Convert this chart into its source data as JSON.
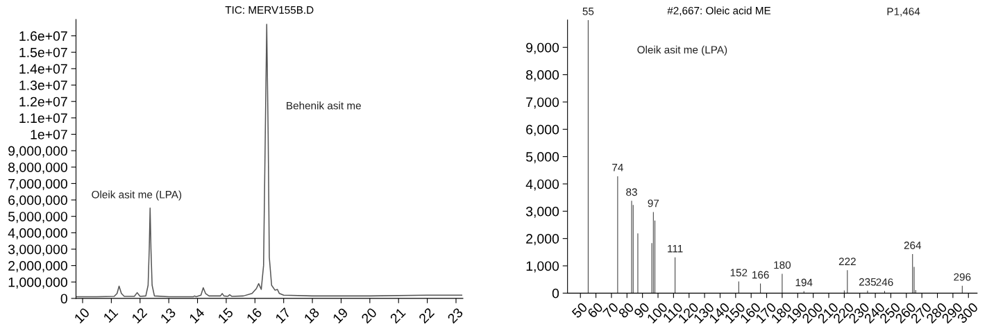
{
  "chart_data": [
    {
      "type": "line",
      "title": "TIC: MERV155B.D",
      "x": [
        9.8,
        10.5,
        11.1,
        11.2,
        11.27,
        11.35,
        11.45,
        11.8,
        11.9,
        12.0,
        12.2,
        12.28,
        12.32,
        12.35,
        12.38,
        12.42,
        12.5,
        13.0,
        13.85,
        13.9,
        13.95,
        14.12,
        14.2,
        14.28,
        14.4,
        14.8,
        14.86,
        14.92,
        15.05,
        15.12,
        15.2,
        15.6,
        15.9,
        16.05,
        16.13,
        16.22,
        16.3,
        16.36,
        16.41,
        16.46,
        16.5,
        16.58,
        16.7,
        16.78,
        16.85,
        17.0,
        18.0,
        20.0,
        22.0,
        23.2
      ],
      "series": [
        {
          "color": "#555555",
          "values": [
            100000,
            100000,
            120000,
            300000,
            750000,
            300000,
            120000,
            120000,
            350000,
            120000,
            150000,
            800000,
            3000000,
            5500000,
            3000000,
            800000,
            150000,
            100000,
            100000,
            150000,
            100000,
            200000,
            650000,
            300000,
            150000,
            150000,
            300000,
            150000,
            120000,
            220000,
            120000,
            150000,
            300000,
            600000,
            900000,
            550000,
            2000000,
            10000000,
            16700000,
            10000000,
            2500000,
            800000,
            500000,
            550000,
            300000,
            200000,
            150000,
            150000,
            200000,
            200000
          ]
        }
      ],
      "xlim": [
        9.77,
        23.24
      ],
      "ylim": [
        0,
        17000000
      ],
      "xticks": [
        10,
        11,
        12,
        13,
        14,
        15,
        16,
        17,
        18,
        19,
        20,
        21,
        22,
        23
      ],
      "yticks": [
        0,
        {
          "value": 1000000,
          "label": "1,000,000"
        },
        {
          "value": 2000000,
          "label": "2,000,000"
        },
        {
          "value": 3000000,
          "label": "3,000,000"
        },
        {
          "value": 4000000,
          "label": "4,000,000"
        },
        {
          "value": 5000000,
          "label": "5,000,000"
        },
        {
          "value": 6000000,
          "label": "6,000,000"
        },
        {
          "value": 7000000,
          "label": "7,000,000"
        },
        {
          "value": 8000000,
          "label": "8,000,000"
        },
        {
          "value": 9000000,
          "label": "9,000,000"
        },
        {
          "value": 10000000,
          "label": "1e+07"
        },
        {
          "value": 11000000,
          "label": "1.1e+07"
        },
        {
          "value": 12000000,
          "label": "1.2e+07"
        },
        {
          "value": 13000000,
          "label": "1.3e+07"
        },
        {
          "value": 14000000,
          "label": "1.4e+07"
        },
        {
          "value": 15000000,
          "label": "1.5e+07"
        },
        {
          "value": 16000000,
          "label": "1.6e+07"
        }
      ],
      "annotations": [
        {
          "text": "Oleik asit me (LPA)",
          "x": 12.35,
          "y": 5500000
        },
        "Behenik asit me"
      ],
      "grid": false,
      "legend": false,
      "marker": "none",
      "line_style": "solid"
    },
    {
      "type": "bar",
      "title": "#2,667: Oleic acid ME",
      "x": [
        55,
        74,
        83,
        84,
        87,
        96,
        97,
        98,
        111,
        152,
        166,
        180,
        194,
        220,
        222,
        235,
        246,
        264,
        265,
        266,
        296
      ],
      "series": [
        {
          "color": "#333333",
          "values": [
            10000,
            4280,
            3380,
            3230,
            2190,
            1830,
            2970,
            2660,
            1310,
            430,
            350,
            710,
            70,
            100,
            840,
            90,
            80,
            1430,
            960,
            110,
            270
          ]
        }
      ],
      "xlim": [
        41.7,
        305.6
      ],
      "ylim": [
        0,
        10000
      ],
      "xticks": [
        50,
        60,
        70,
        80,
        90,
        100,
        110,
        120,
        130,
        140,
        150,
        160,
        170,
        180,
        190,
        200,
        210,
        220,
        230,
        240,
        250,
        260,
        270,
        280,
        290,
        300
      ],
      "yticks": [
        0,
        {
          "value": 1000,
          "label": "1,000"
        },
        {
          "value": 2000,
          "label": "2,000"
        },
        {
          "value": 3000,
          "label": "3,000"
        },
        {
          "value": 4000,
          "label": "4,000"
        },
        {
          "value": 5000,
          "label": "5,000"
        },
        {
          "value": 6000,
          "label": "6,000"
        },
        {
          "value": 7000,
          "label": "7,000"
        },
        {
          "value": 8000,
          "label": "8,000"
        },
        {
          "value": 9000,
          "label": "9,000"
        }
      ],
      "annotations": [
        "P1,464",
        "Oleik asit me (LPA)",
        {
          "text": "55",
          "x": 55,
          "y": 10000
        },
        {
          "text": "74",
          "x": 74,
          "y": 4280
        },
        {
          "text": "83",
          "x": 83,
          "y": 3380
        },
        {
          "text": "97",
          "x": 97,
          "y": 2970
        },
        {
          "text": "111",
          "x": 111,
          "y": 1310
        },
        {
          "text": "152",
          "x": 152,
          "y": 430
        },
        {
          "text": "166",
          "x": 166,
          "y": 350
        },
        {
          "text": "180",
          "x": 180,
          "y": 710
        },
        {
          "text": "194",
          "x": 194,
          "y": 70
        },
        {
          "text": "222",
          "x": 222,
          "y": 840
        },
        {
          "text": "235",
          "x": 235,
          "y": 90
        },
        {
          "text": "246",
          "x": 246,
          "y": 80
        },
        {
          "text": "264",
          "x": 264,
          "y": 1430
        },
        {
          "text": "296",
          "x": 296,
          "y": 270
        }
      ],
      "grid": false,
      "legend": false
    }
  ]
}
